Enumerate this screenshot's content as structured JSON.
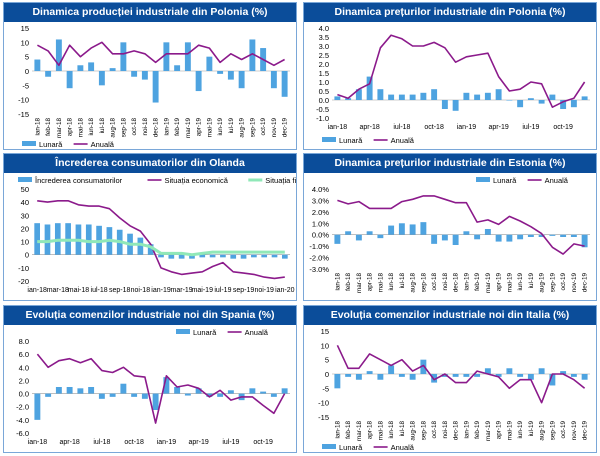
{
  "charts": [
    {
      "title": "Dinamica producției industriale din Polonia (%)",
      "type": "bar+line",
      "ylim": [
        -15,
        15
      ],
      "yticks": [
        -15,
        -10,
        -5,
        0,
        5,
        10,
        15
      ],
      "categories": [
        "ian-18",
        "feb-18",
        "mar-18",
        "apr-18",
        "mai-18",
        "iun-18",
        "iul-18",
        "aug-18",
        "sep-18",
        "oct-18",
        "noi-18",
        "dec-18",
        "ian-19",
        "feb-19",
        "mar-19",
        "apr-19",
        "mai-19",
        "iun-19",
        "iul-19",
        "aug-19",
        "sep-19",
        "oct-19",
        "nov-19",
        "dec-19"
      ],
      "xlabels": [
        "ian-18",
        "feb-18",
        "mar-18",
        "apr-18",
        "mai-18",
        "iun-18",
        "iul-18",
        "aug-18",
        "sep-18",
        "oct-18",
        "noi-18",
        "dec-18",
        "ian-19",
        "feb-19",
        "mar-19",
        "apr-19",
        "mai-19",
        "iun-19",
        "iul-19",
        "aug-19",
        "sep-19",
        "oct-19",
        "nov-19",
        "dec-19"
      ],
      "label_rotate": true,
      "series": [
        {
          "name": "Lunară",
          "kind": "bar",
          "values": [
            4,
            -2,
            11,
            -6,
            2,
            3,
            -5,
            1,
            10,
            -2,
            -3,
            -11,
            10,
            2,
            10,
            -7,
            5,
            -1,
            -3,
            -6,
            11,
            8,
            -6,
            -9
          ]
        },
        {
          "name": "Anuală",
          "kind": "line",
          "values": [
            9,
            7,
            2,
            9,
            5,
            8,
            10,
            6,
            6,
            7,
            6,
            3,
            6,
            6,
            6,
            9,
            8,
            3,
            6,
            4,
            6,
            4,
            2,
            4
          ]
        }
      ],
      "legend": {
        "position": "bottom-left",
        "items": [
          "Lunară",
          "Anuală"
        ]
      }
    },
    {
      "title": "Dinamica prețurilor industriale din Polonia (%)",
      "type": "bar+line",
      "ylim": [
        -1.0,
        4.0
      ],
      "yticks": [
        -1.0,
        -0.5,
        0.0,
        0.5,
        1.0,
        1.5,
        2.0,
        2.5,
        3.0,
        3.5,
        4.0
      ],
      "categories": [
        "ian-18",
        "feb-18",
        "mar-18",
        "apr-18",
        "mai-18",
        "iun-18",
        "iul-18",
        "aug-18",
        "sep-18",
        "oct-18",
        "noi-18",
        "dec-18",
        "ian-19",
        "feb-19",
        "mar-19",
        "apr-19",
        "mai-19",
        "iun-19",
        "iul-19",
        "aug-19",
        "sep-19",
        "oct-19",
        "nov-19",
        "dec-19"
      ],
      "xlabels": [
        "ian-18",
        "",
        "",
        "apr-18",
        "",
        "",
        "iul-18",
        "",
        "",
        "oct-18",
        "",
        "",
        "ian-19",
        "",
        "",
        "apr-19",
        "",
        "",
        "iul-19",
        "",
        "",
        "oct-19",
        "",
        ""
      ],
      "label_rotate": false,
      "series": [
        {
          "name": "Lunară",
          "kind": "bar",
          "values": [
            0.2,
            0.1,
            0.6,
            1.3,
            0.6,
            0.3,
            0.3,
            0.3,
            0.4,
            0.6,
            -0.5,
            -0.6,
            0.4,
            0.3,
            0.4,
            0.6,
            0.0,
            -0.4,
            0.1,
            -0.2,
            0.3,
            -0.5,
            -0.4,
            0.2
          ]
        },
        {
          "name": "Anuală",
          "kind": "line",
          "values": [
            0.3,
            0.1,
            0.6,
            0.9,
            2.9,
            3.6,
            3.4,
            3.0,
            3.0,
            3.2,
            2.9,
            2.1,
            2.4,
            2.5,
            2.6,
            1.3,
            0.5,
            0.6,
            1.0,
            0.9,
            -0.4,
            -0.1,
            0.1,
            1.0
          ]
        }
      ],
      "legend": {
        "position": "bottom-left",
        "items": [
          "Lunară",
          "Anuală"
        ]
      }
    },
    {
      "title": "Încrederea consumatorilor din Olanda",
      "type": "bar+line",
      "ylim": [
        -20,
        50
      ],
      "yticks": [
        -20,
        -10,
        0,
        10,
        20,
        30,
        40,
        50
      ],
      "categories": [
        "ian-18",
        "feb-18",
        "mar-18",
        "apr-18",
        "mai-18",
        "iun-18",
        "iul-18",
        "aug-18",
        "sep-18",
        "oct-18",
        "noi-18",
        "dec-18",
        "ian-19",
        "feb-19",
        "mar-19",
        "apr-19",
        "mai-19",
        "iun-19",
        "iul-19",
        "aug-19",
        "sep-19",
        "oct-19",
        "nov-19",
        "dec-19",
        "ian-20"
      ],
      "xlabels": [
        "ian-18",
        "",
        "mar-18",
        "",
        "mai-18",
        "",
        "iul-18",
        "",
        "sep-18",
        "",
        "noi-18",
        "",
        "ian-19",
        "",
        "mar-19",
        "",
        "mai-19",
        "",
        "iul-19",
        "",
        "sep-19",
        "",
        "noi-19",
        "",
        "ian-20"
      ],
      "label_rotate": false,
      "series": [
        {
          "name": "Încrederea consumatorilor",
          "kind": "bar",
          "values": [
            24,
            23,
            24,
            24,
            23,
            23,
            22,
            21,
            19,
            16,
            13,
            8,
            -2,
            -3,
            -3,
            -3,
            -2,
            -2,
            -2,
            -3,
            -3,
            -2,
            -2,
            -2,
            -3
          ]
        },
        {
          "name": "Situația economică",
          "kind": "line",
          "values": [
            41,
            40,
            41,
            41,
            38,
            37,
            37,
            35,
            28,
            22,
            18,
            8,
            -10,
            -13,
            -15,
            -14,
            -13,
            -9,
            -6,
            -13,
            -14,
            -15,
            -17,
            -18,
            -17
          ]
        },
        {
          "name": "Situația financiară",
          "kind": "line",
          "values": [
            10,
            10,
            11,
            11,
            11,
            10,
            10,
            11,
            10,
            8,
            8,
            6,
            1,
            1,
            1,
            0,
            1,
            2,
            2,
            2,
            2,
            2,
            2,
            2,
            2
          ]
        }
      ],
      "legend": {
        "position": "top",
        "items": [
          "Încrederea consumatorilor",
          "Situația economică",
          "Situația financiară"
        ]
      }
    },
    {
      "title": "Dinamica prețurilor industriale din Estonia (%)",
      "type": "bar+line",
      "ylim": [
        -3.0,
        4.0
      ],
      "yticks": [
        -3.0,
        -2.0,
        -1.0,
        0.0,
        1.0,
        2.0,
        3.0,
        4.0
      ],
      "ytick_format": "pct1",
      "categories": [
        "ian-18",
        "feb-18",
        "mar-18",
        "apr-18",
        "mai-18",
        "iun-18",
        "iul-18",
        "aug-18",
        "sep-18",
        "oct-18",
        "noi-18",
        "dec-18",
        "ian-19",
        "feb-19",
        "mar-19",
        "apr-19",
        "mai-19",
        "iun-19",
        "iul-19",
        "aug-19",
        "sep-19",
        "oct-19",
        "nov-19",
        "dec-19"
      ],
      "xlabels": [
        "ian-18",
        "feb-18",
        "mar-18",
        "apr-18",
        "mai-18",
        "iun-18",
        "iul-18",
        "aug-18",
        "sep-18",
        "oct-18",
        "noi-18",
        "dec-18",
        "ian-19",
        "feb-19",
        "mar-19",
        "apr-19",
        "mai-19",
        "iun-19",
        "iul-19",
        "aug-19",
        "sep-19",
        "oct-19",
        "nov-19",
        "dec-19"
      ],
      "label_rotate": true,
      "series": [
        {
          "name": "Lunară",
          "kind": "bar",
          "values": [
            -0.8,
            0.3,
            -0.5,
            0.3,
            -0.3,
            0.8,
            1.0,
            0.9,
            1.1,
            -0.8,
            -0.5,
            -0.9,
            0.3,
            -0.4,
            0.5,
            -0.6,
            -0.6,
            -0.4,
            -0.2,
            -0.2,
            -0.1,
            -0.2,
            -0.2,
            -1.1
          ]
        },
        {
          "name": "Anuală",
          "kind": "line",
          "values": [
            3.0,
            2.7,
            2.9,
            2.3,
            2.3,
            2.3,
            2.9,
            3.1,
            3.4,
            3.4,
            3.1,
            2.8,
            2.8,
            1.1,
            1.3,
            0.9,
            1.6,
            1.2,
            0.7,
            0.1,
            -1.1,
            -1.7,
            -0.8,
            -1.0
          ]
        }
      ],
      "legend": {
        "position": "top-right",
        "items": [
          "Lunară",
          "Anuală"
        ]
      }
    },
    {
      "title": "Evoluția comenzilor industriale noi din Spania (%)",
      "type": "bar+line",
      "ylim": [
        -6.0,
        8.0
      ],
      "yticks": [
        -6.0,
        -4.0,
        -2.0,
        0.0,
        2.0,
        4.0,
        6.0,
        8.0
      ],
      "categories": [
        "ian-18",
        "feb-18",
        "mar-18",
        "apr-18",
        "mai-18",
        "iun-18",
        "iul-18",
        "aug-18",
        "sep-18",
        "oct-18",
        "noi-18",
        "dec-18",
        "ian-19",
        "feb-19",
        "mar-19",
        "apr-19",
        "mai-19",
        "iun-19",
        "iul-19",
        "aug-19",
        "sep-19",
        "oct-19",
        "nov-19",
        "dec-19"
      ],
      "xlabels": [
        "ian-18",
        "",
        "",
        "apr-18",
        "",
        "",
        "iul-18",
        "",
        "",
        "oct-18",
        "",
        "",
        "ian-19",
        "",
        "",
        "apr-19",
        "",
        "",
        "iul-19",
        "",
        "",
        "oct-19",
        "",
        ""
      ],
      "label_rotate": false,
      "series": [
        {
          "name": "Lunară",
          "kind": "bar",
          "values": [
            -4.0,
            -0.5,
            1.0,
            1.0,
            0.8,
            1.0,
            -0.8,
            -0.5,
            1.5,
            -0.5,
            -0.8,
            -2.5,
            2.5,
            1.0,
            -0.3,
            0.8,
            -0.5,
            -0.5,
            0.5,
            -1.0,
            0.8,
            0.3,
            -0.5,
            0.8
          ]
        },
        {
          "name": "Anuală",
          "kind": "line",
          "values": [
            6.0,
            4.0,
            5.0,
            5.3,
            4.7,
            5.3,
            3.5,
            3.2,
            4.0,
            2.7,
            2.5,
            -4.5,
            2.7,
            1.0,
            1.3,
            0.8,
            -0.5,
            0.5,
            -1.0,
            -0.5,
            -0.5,
            -1.8,
            -3.0,
            0.0
          ]
        }
      ],
      "legend": {
        "position": "top-right",
        "items": [
          "Lunară",
          "Anuală"
        ]
      }
    },
    {
      "title": "Evoluția comenzilor industriale noi din Italia (%)",
      "type": "bar+line",
      "ylim": [
        -15,
        15
      ],
      "yticks": [
        -15,
        -10,
        -5,
        0,
        5,
        10,
        15
      ],
      "categories": [
        "ian-18",
        "feb-18",
        "mar-18",
        "apr-18",
        "mai-18",
        "iun-18",
        "iul-18",
        "aug-18",
        "sep-18",
        "oct-18",
        "noi-18",
        "dec-18",
        "ian-19",
        "feb-19",
        "mar-19",
        "apr-19",
        "mai-19",
        "iun-19",
        "iul-19",
        "aug-19",
        "sep-19",
        "oct-19",
        "nov-19",
        "dec-19"
      ],
      "xlabels": [
        "ian-18",
        "feb-18",
        "mar-18",
        "apr-18",
        "mai-18",
        "iun-18",
        "iul-18",
        "aug-18",
        "sep-18",
        "oct-18",
        "noi-18",
        "dec-18",
        "ian-19",
        "feb-19",
        "mar-19",
        "apr-19",
        "mai-19",
        "iun-19",
        "iul-19",
        "aug-19",
        "sep-19",
        "oct-19",
        "nov-19",
        "dec-19"
      ],
      "label_rotate": true,
      "series": [
        {
          "name": "Lunară",
          "kind": "bar",
          "values": [
            -5,
            -1,
            -2,
            1,
            -2,
            3,
            -1,
            -2,
            5,
            -3,
            -1,
            -1,
            -1,
            -1,
            2,
            -1,
            2,
            -1,
            -2,
            2,
            -4,
            1,
            -1,
            -2
          ]
        },
        {
          "name": "Anuală",
          "kind": "line",
          "values": [
            10,
            2,
            2,
            7,
            5,
            3,
            5,
            1,
            3,
            -2,
            0,
            -3,
            -3,
            1,
            0,
            -1,
            -5,
            -2,
            -2,
            -10,
            0,
            0,
            -2,
            -5
          ]
        }
      ],
      "legend": {
        "position": "bottom-left",
        "items": [
          "Lunară",
          "Anuală"
        ]
      }
    }
  ],
  "colors": {
    "bar": "#4ea3e0",
    "line": "#8b1a8b",
    "line2": "#90e8b8",
    "title_bg": "#0b4d9a",
    "border": "#7aa7d8"
  }
}
